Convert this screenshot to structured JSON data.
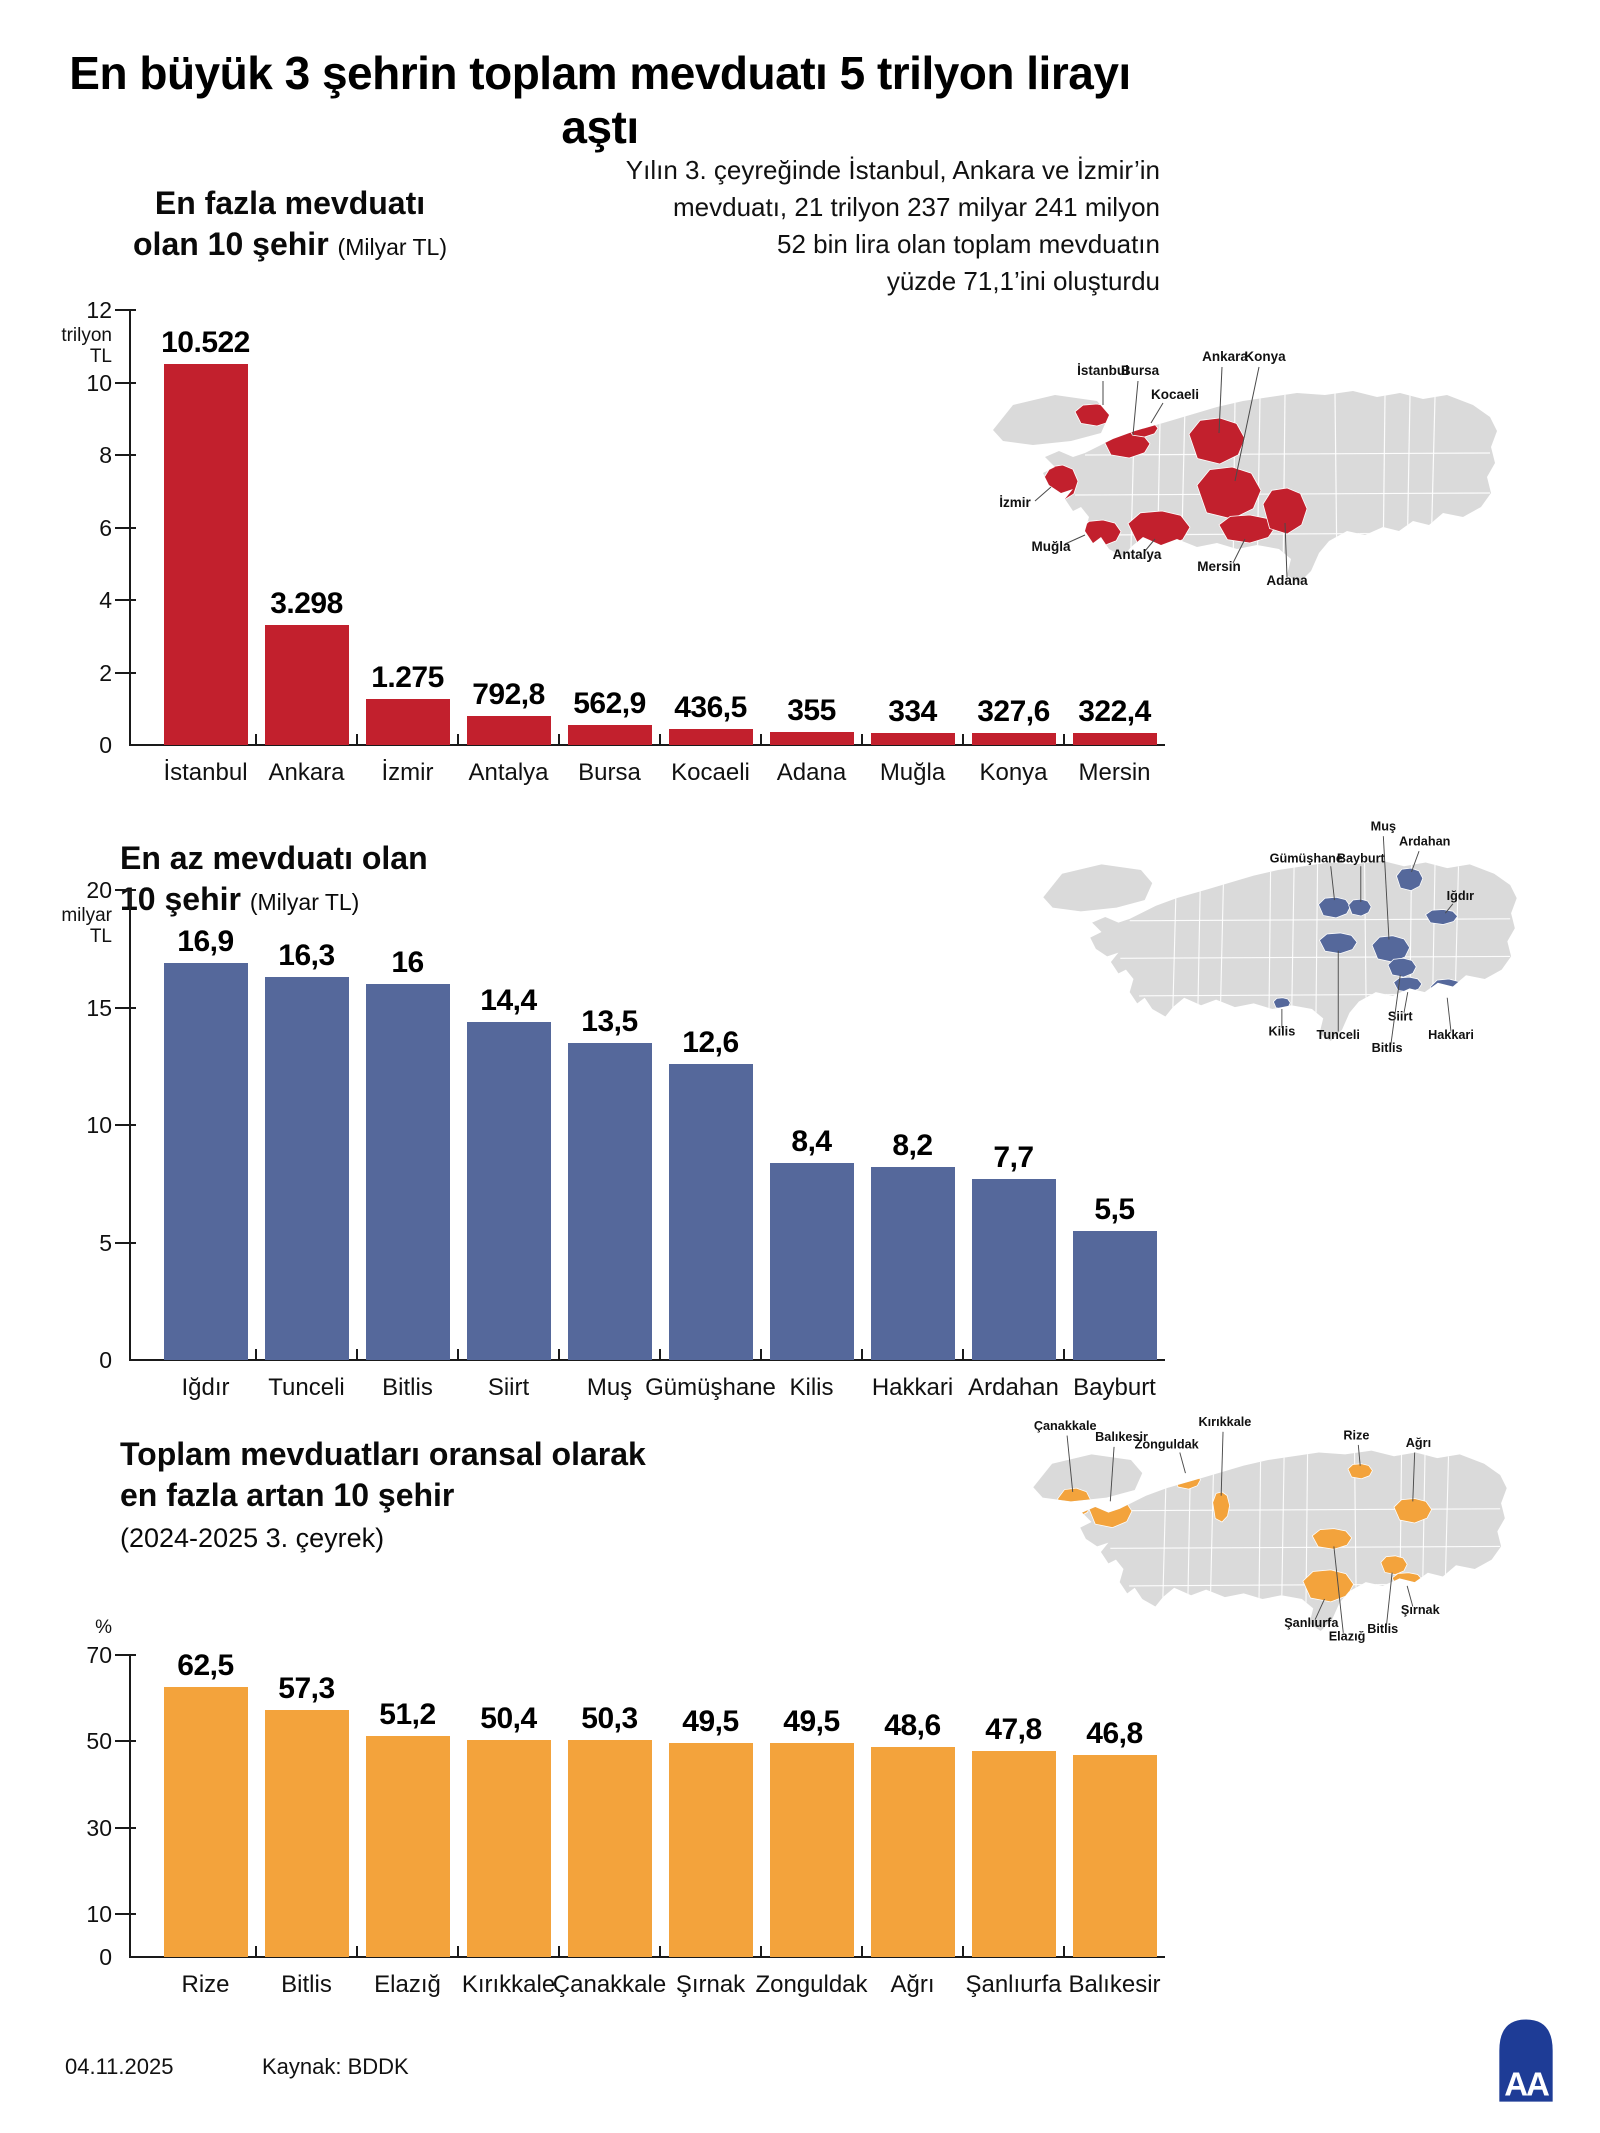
{
  "header": {
    "title": "En büyük 3 şehrin toplam mevduatı 5 trilyon lirayı aştı",
    "subtitle_lines": [
      "Yılın 3. çeyreğinde İstanbul, Ankara ve İzmir’in",
      "mevduatı, 21 trilyon 237 milyar 241 milyon",
      "52 bin lira olan toplam mevduatın",
      "yüzde 71,1’ini oluşturdu"
    ]
  },
  "footer": {
    "date": "04.11.2025",
    "source": "Kaynak: BDDK",
    "logo_text": "AA"
  },
  "chart_data": [
    {
      "type": "bar",
      "title": "En fazla mevduatı olan 10 şehir",
      "title_lines": [
        "En fazla mevduatı",
        "olan 10 şehir"
      ],
      "unit_suffix": "(Milyar TL)",
      "categories": [
        "İstanbul",
        "Ankara",
        "İzmir",
        "Antalya",
        "Bursa",
        "Kocaeli",
        "Adana",
        "Muğla",
        "Konya",
        "Mersin"
      ],
      "values": [
        10.522,
        3.298,
        1.275,
        0.7928,
        0.5629,
        0.4365,
        0.355,
        0.334,
        0.3276,
        0.3224
      ],
      "value_labels": [
        "10.522",
        "3.298",
        "1.275",
        "792,8",
        "562,9",
        "436,5",
        "355",
        "334",
        "327,6",
        "322,4"
      ],
      "xlabel": "",
      "ylabel": "",
      "ylim": [
        0,
        12
      ],
      "yticks": [
        12,
        10,
        8,
        6,
        4,
        2,
        0
      ],
      "axis_unit_lines": [
        "trilyon",
        "TL"
      ],
      "unit_position": "below",
      "grid": false,
      "color": "#C2202D",
      "map_labels": [
        "İstanbul",
        "Bursa",
        "Kocaeli",
        "Ankara",
        "Konya",
        "İzmir",
        "Muğla",
        "Antalya",
        "Mersin",
        "Adana"
      ]
    },
    {
      "type": "bar",
      "title": "En az mevduatı olan 10 şehir",
      "title_lines": [
        "En az mevduatı olan",
        "10 şehir"
      ],
      "unit_suffix": "(Milyar TL)",
      "categories": [
        "Iğdır",
        "Tunceli",
        "Bitlis",
        "Siirt",
        "Muş",
        "Gümüşhane",
        "Kilis",
        "Hakkari",
        "Ardahan",
        "Bayburt"
      ],
      "values": [
        16.9,
        16.3,
        16,
        14.4,
        13.5,
        12.6,
        8.4,
        8.2,
        7.7,
        5.5
      ],
      "value_labels": [
        "16,9",
        "16,3",
        "16",
        "14,4",
        "13,5",
        "12,6",
        "8,4",
        "8,2",
        "7,7",
        "5,5"
      ],
      "xlabel": "",
      "ylabel": "",
      "ylim": [
        0,
        20
      ],
      "yticks": [
        20,
        15,
        10,
        5,
        0
      ],
      "axis_unit_lines": [
        "milyar",
        "TL"
      ],
      "unit_position": "below",
      "grid": false,
      "color": "#55689B",
      "map_labels": [
        "Muş",
        "Ardahan",
        "Gümüşhane",
        "Bayburt",
        "Iğdır",
        "Kilis",
        "Tunceli",
        "Siirt",
        "Bitlis",
        "Hakkari"
      ]
    },
    {
      "type": "bar",
      "title": "Toplam mevduatları oransal olarak en fazla artan 10 şehir",
      "title_lines": [
        "Toplam mevduatları oransal olarak",
        "en fazla artan 10 şehir"
      ],
      "subtitle": "(2024-2025 3. çeyrek)",
      "categories": [
        "Rize",
        "Bitlis",
        "Elazığ",
        "Kırıkkale",
        "Çanakkale",
        "Şırnak",
        "Zonguldak",
        "Ağrı",
        "Şanlıurfa",
        "Balıkesir"
      ],
      "values": [
        62.5,
        57.3,
        51.2,
        50.4,
        50.3,
        49.5,
        49.5,
        48.6,
        47.8,
        46.8
      ],
      "value_labels": [
        "62,5",
        "57,3",
        "51,2",
        "50,4",
        "50,3",
        "49,5",
        "49,5",
        "48,6",
        "47,8",
        "46,8"
      ],
      "xlabel": "",
      "ylabel": "",
      "ylim": [
        0,
        70
      ],
      "yticks": [
        70,
        50,
        30,
        10,
        0
      ],
      "axis_unit_lines": [
        "%"
      ],
      "unit_position": "above",
      "grid": false,
      "color": "#F3A33C",
      "map_labels": [
        "Çanakkale",
        "Balıkesir",
        "Zonguldak",
        "Kırıkkale",
        "Rize",
        "Ağrı",
        "Şanlıurfa",
        "Elazığ",
        "Bitlis",
        "Şırnak"
      ]
    }
  ]
}
